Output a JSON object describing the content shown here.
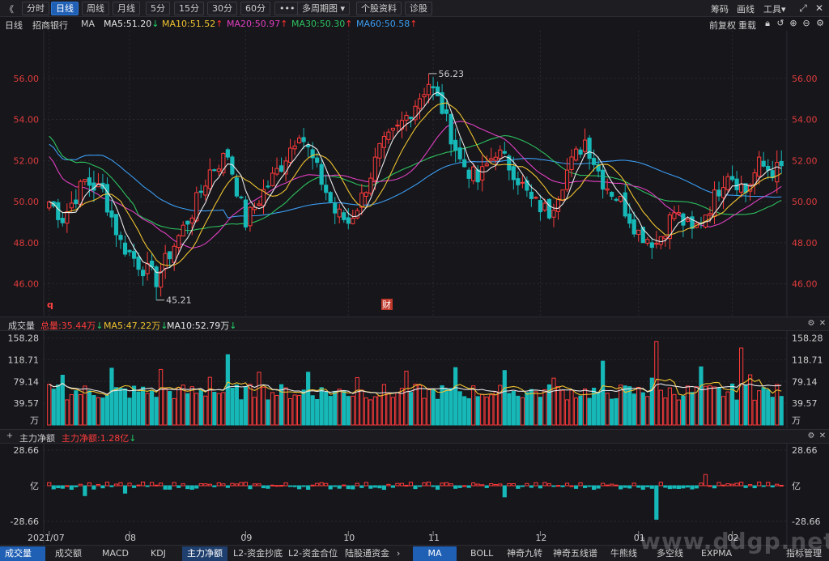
{
  "toolbar": {
    "back_glyph": "《",
    "tabs": [
      "分时",
      "日线",
      "周线",
      "月线",
      "5分",
      "15分",
      "30分",
      "60分"
    ],
    "active_tab": 1,
    "more": "•••",
    "multi_period": "多周期图",
    "stock_info": "个股资料",
    "diagnose": "诊股",
    "right": [
      "筹码",
      "画线",
      "工具"
    ]
  },
  "ma_header": {
    "period": "日线",
    "stock_name": "招商银行",
    "ma_label": "MA",
    "items": [
      {
        "text": "MA5:51.20",
        "arrow": "↓",
        "color": "#e8e8e8"
      },
      {
        "text": "MA10:51.52",
        "arrow": "↑",
        "color": "#f0c330"
      },
      {
        "text": "MA20:50.97",
        "arrow": "↑",
        "color": "#e040c0"
      },
      {
        "text": "MA30:50.30",
        "arrow": "↑",
        "color": "#2ec25e"
      },
      {
        "text": "MA60:50.58",
        "arrow": "↑",
        "color": "#3c9cf0"
      }
    ],
    "adjust": "前复权",
    "reload": "重载"
  },
  "colors": {
    "up": "#ff3b3b",
    "down": "#16b8b8",
    "ma5": "#e8e8e8",
    "ma10": "#f0c330",
    "ma20": "#e040c0",
    "ma30": "#2ec25e",
    "ma60": "#3c9cf0",
    "price_axis": "#e03c3c",
    "grid": "#2a2a30"
  },
  "price_panel": {
    "ticks": [
      "56.00",
      "54.00",
      "52.00",
      "50.00",
      "48.00",
      "46.00"
    ],
    "tick_values": [
      56,
      54,
      52,
      50,
      48,
      46
    ],
    "ylim": [
      45.0,
      58.0
    ],
    "max_label": "56.23",
    "min_label": "45.21",
    "marker_q": "q",
    "marker_cai": "财"
  },
  "volume_panel": {
    "title": "成交量",
    "total": "总量:35.44万",
    "ma5": "MA5:47.22万",
    "ma10": "MA10:52.79万",
    "ticks": [
      "158.28",
      "118.71",
      "79.14",
      "39.57"
    ],
    "tick_values": [
      158.28,
      118.71,
      79.14,
      39.57
    ],
    "unit": "万"
  },
  "flow_panel": {
    "title": "主力净额",
    "value": "主力净额:1.28亿",
    "ticks": [
      "28.66",
      "亿",
      "-28.66"
    ]
  },
  "x_axis": [
    "2021/07",
    "08",
    "09",
    "10",
    "11",
    "12",
    "01",
    "02"
  ],
  "x_axis_index": [
    0,
    18,
    44,
    67,
    86,
    110,
    132,
    153
  ],
  "bottom_tabs": [
    "成交量",
    "成交额",
    "MACD",
    "KDJ",
    "主力净额",
    "L2-资金抄底",
    "L2-资金合位",
    "陆股通资金",
    "MA",
    "BOLL",
    "神奇九转",
    "神奇五线谱",
    "牛熊线",
    "多空线",
    "EXPMA",
    "指标管理"
  ],
  "watermark": "www.ddgp.net",
  "chart_data": [
    {
      "type": "candlestick",
      "title": "",
      "ylim": [
        45.0,
        58.0
      ],
      "ticks": [
        56,
        54,
        52,
        50,
        48,
        46
      ],
      "max": 56.23,
      "min": 45.21,
      "start": 50.0,
      "bars": 165,
      "series": [
        "MA5:51.20",
        "MA10:51.52",
        "MA20:50.97",
        "MA30:50.30",
        "MA60:50.58"
      ]
    },
    {
      "type": "bar",
      "title": "成交量",
      "ylim": [
        0,
        165
      ],
      "ticks": [
        158.28,
        118.71,
        79.14,
        39.57
      ],
      "unit": "万"
    },
    {
      "type": "bar",
      "title": "主力净额",
      "ylim": [
        -28.66,
        28.66
      ],
      "unit": "亿"
    }
  ]
}
